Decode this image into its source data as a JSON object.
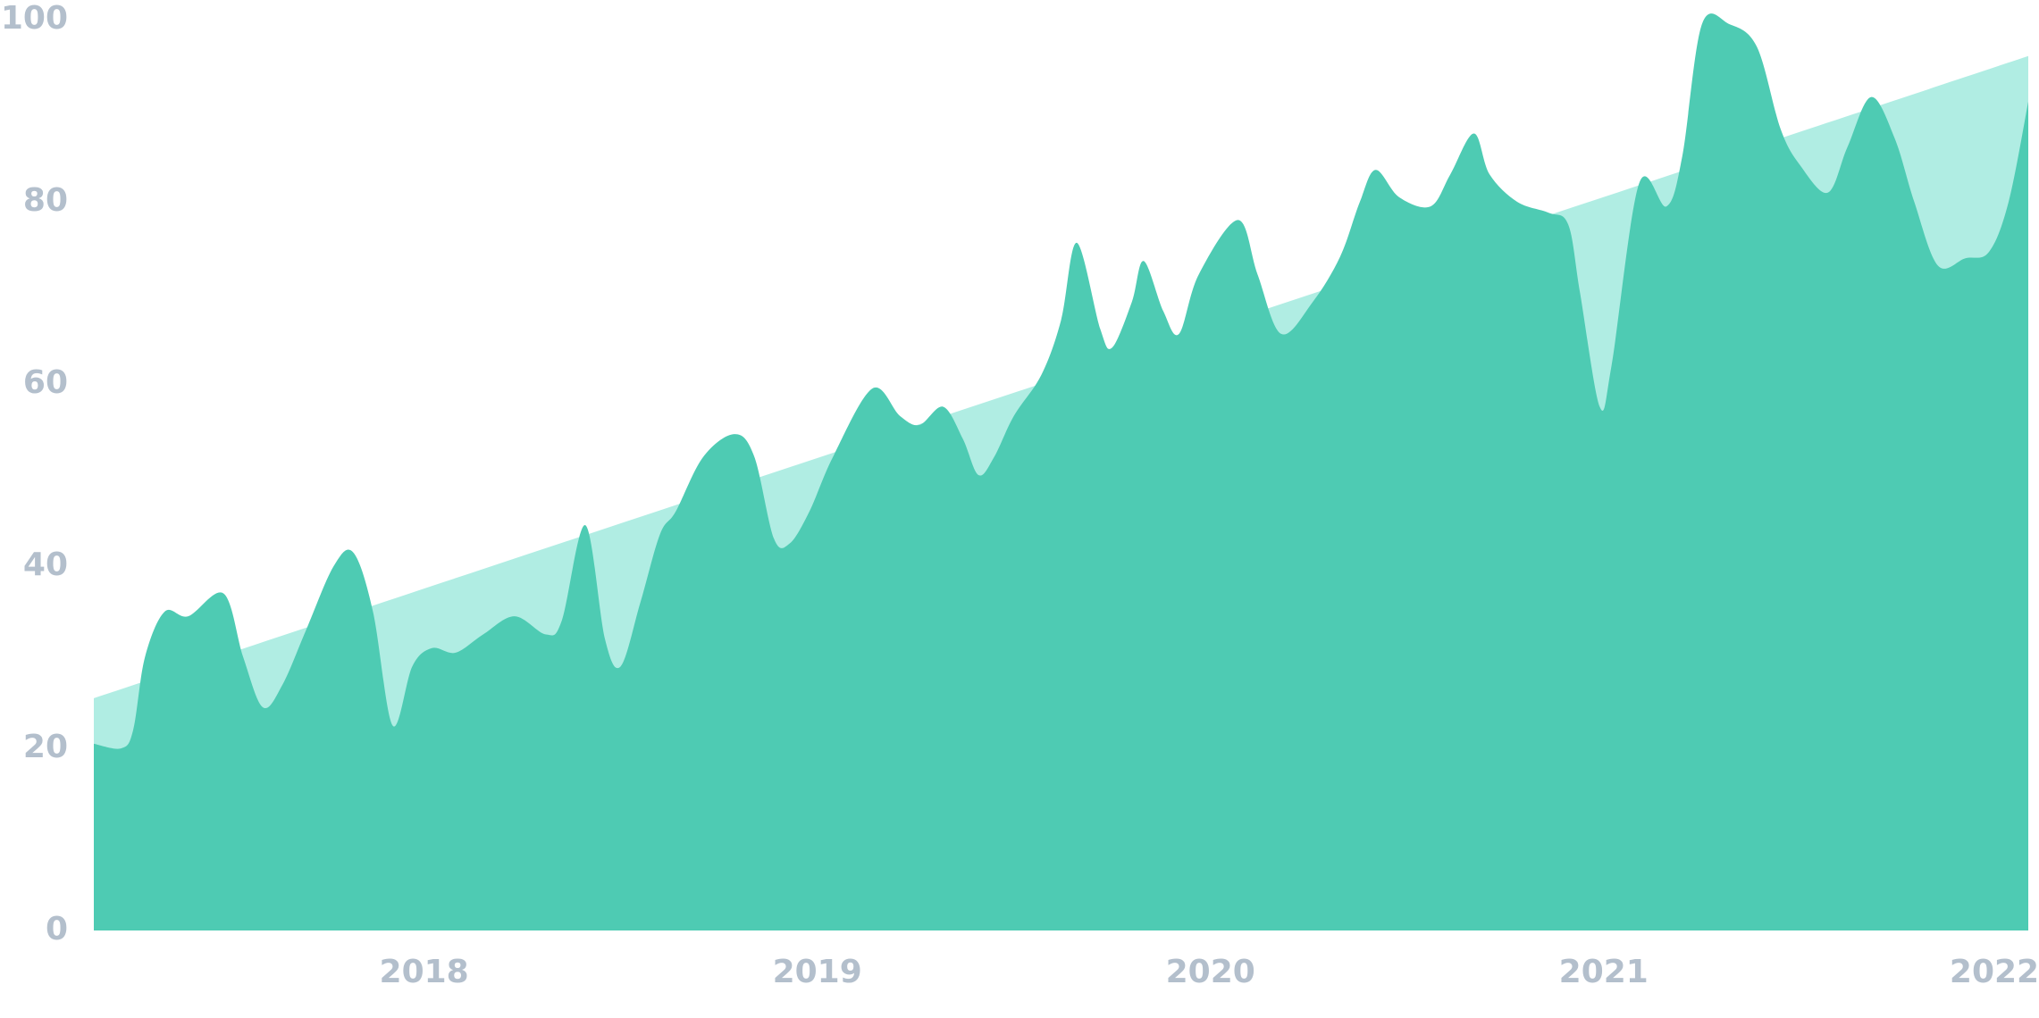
{
  "chart_data": {
    "type": "area",
    "series": [
      {
        "color": "#b0ede3",
        "x": [
          2017.16,
          2022.08
        ],
        "values": [
          25.5,
          96
        ]
      },
      {
        "color": "#4ecbb3",
        "x": [
          2017.16,
          2017.23,
          2017.26,
          2017.29,
          2017.34,
          2017.4,
          2017.49,
          2017.54,
          2017.59,
          2017.64,
          2017.7,
          2017.77,
          2017.82,
          2017.87,
          2017.92,
          2017.97,
          2018.02,
          2018.08,
          2018.15,
          2018.23,
          2018.31,
          2018.35,
          2018.41,
          2018.46,
          2018.5,
          2018.55,
          2018.6,
          2018.64,
          2018.71,
          2018.79,
          2018.84,
          2018.89,
          2018.93,
          2018.98,
          2019.04,
          2019.14,
          2019.21,
          2019.26,
          2019.32,
          2019.37,
          2019.41,
          2019.45,
          2019.5,
          2019.57,
          2019.62,
          2019.66,
          2019.72,
          2019.75,
          2019.8,
          2019.83,
          2019.88,
          2019.92,
          2019.97,
          2020.07,
          2020.12,
          2020.18,
          2020.26,
          2020.33,
          2020.38,
          2020.42,
          2020.48,
          2020.56,
          2020.61,
          2020.67,
          2020.71,
          2020.78,
          2020.86,
          2020.91,
          2020.94,
          2020.99,
          2021.02,
          2021.09,
          2021.16,
          2021.2,
          2021.25,
          2021.32,
          2021.39,
          2021.45,
          2021.5,
          2021.57,
          2021.62,
          2021.68,
          2021.74,
          2021.79,
          2021.85,
          2021.92,
          2021.98,
          2022.03,
          2022.08
        ],
        "values": [
          20.5,
          20,
          22,
          30,
          35,
          34.5,
          37,
          30,
          24.5,
          27,
          33,
          40,
          41.5,
          35,
          22.5,
          29,
          31,
          30.5,
          32.5,
          34.5,
          32.5,
          34,
          44.5,
          32,
          29,
          36,
          43.5,
          46,
          52,
          54.5,
          52,
          43,
          42.5,
          46,
          52,
          59.5,
          56.5,
          55.5,
          57.5,
          54,
          50,
          52,
          56.5,
          61,
          67,
          75.5,
          66,
          64,
          69,
          73.5,
          68,
          65.5,
          72,
          78,
          72,
          65.5,
          69,
          74,
          80,
          83.5,
          80.5,
          79.5,
          83,
          87.5,
          83,
          80,
          78.8,
          77.5,
          70,
          57.5,
          62,
          82,
          79.5,
          85,
          99.5,
          99.5,
          97,
          88,
          84,
          81,
          86,
          91.5,
          87,
          80,
          73,
          73.8,
          74.5,
          80,
          91
        ]
      }
    ],
    "xlim": [
      2017.16,
      2022.08
    ],
    "xticks": [
      2018,
      2019,
      2020,
      2021,
      2022
    ],
    "ylim": [
      0,
      100
    ],
    "yticks": [
      0,
      20,
      40,
      60,
      80,
      100
    ]
  }
}
